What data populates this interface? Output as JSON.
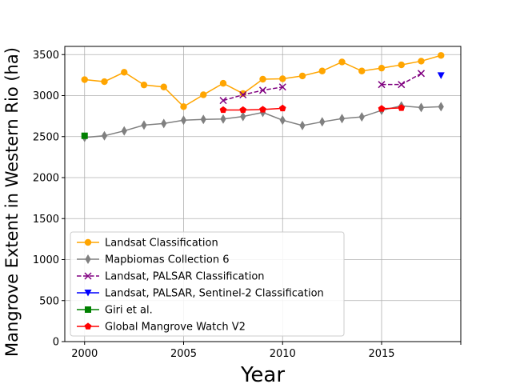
{
  "chart_data": {
    "type": "line",
    "xlabel": "Year",
    "ylabel": "Mangrove Extent in Western Rio (ha)",
    "xlim": [
      1999,
      2019
    ],
    "ylim": [
      0,
      3600
    ],
    "x_ticks": [
      2000,
      2005,
      2010,
      2015
    ],
    "y_ticks": [
      0,
      500,
      1000,
      1500,
      2000,
      2500,
      3000,
      3500
    ],
    "grid": true,
    "legend_position": "lower-left",
    "series": [
      {
        "name": "Landsat Classification",
        "color": "#ffa500",
        "marker": "circle",
        "line": "solid",
        "x": [
          2000,
          2001,
          2002,
          2003,
          2004,
          2005,
          2006,
          2007,
          2008,
          2009,
          2010,
          2011,
          2012,
          2013,
          2014,
          2015,
          2016,
          2017,
          2018
        ],
        "y": [
          3195,
          3170,
          3285,
          3130,
          3105,
          2865,
          3010,
          3150,
          3025,
          3200,
          3205,
          3240,
          3300,
          3410,
          3300,
          3335,
          3375,
          3420,
          3490
        ]
      },
      {
        "name": "Mapbiomas Collection 6",
        "color": "#808080",
        "marker": "diamond",
        "line": "solid",
        "x": [
          2000,
          2001,
          2002,
          2003,
          2004,
          2005,
          2006,
          2007,
          2008,
          2009,
          2010,
          2011,
          2012,
          2013,
          2014,
          2015,
          2016,
          2017,
          2018
        ],
        "y": [
          2490,
          2510,
          2570,
          2640,
          2660,
          2700,
          2710,
          2715,
          2745,
          2795,
          2700,
          2635,
          2680,
          2720,
          2740,
          2820,
          2875,
          2855,
          2865
        ]
      },
      {
        "name": "Landsat, PALSAR Classification",
        "color": "#800080",
        "marker": "x",
        "line": "dashed",
        "x": [
          2007,
          2008,
          2009,
          2010,
          null,
          2015,
          2016,
          2017
        ],
        "y": [
          2940,
          3010,
          3065,
          3105,
          null,
          3135,
          3135,
          3270
        ]
      },
      {
        "name": "Landsat, PALSAR, Sentinel-2 Classification",
        "color": "#0000ff",
        "marker": "triangle-down",
        "line": "solid",
        "x": [
          2018
        ],
        "y": [
          3245
        ]
      },
      {
        "name": "Giri et al.",
        "color": "#008000",
        "marker": "square",
        "line": "solid",
        "x": [
          2000
        ],
        "y": [
          2510
        ]
      },
      {
        "name": "Global Mangrove Watch V2",
        "color": "#ff0000",
        "marker": "pentagon",
        "line": "solid",
        "x": [
          2007,
          2008,
          2009,
          2010,
          null,
          2015,
          2016
        ],
        "y": [
          2825,
          2825,
          2830,
          2845,
          null,
          2840,
          2850
        ]
      }
    ]
  }
}
